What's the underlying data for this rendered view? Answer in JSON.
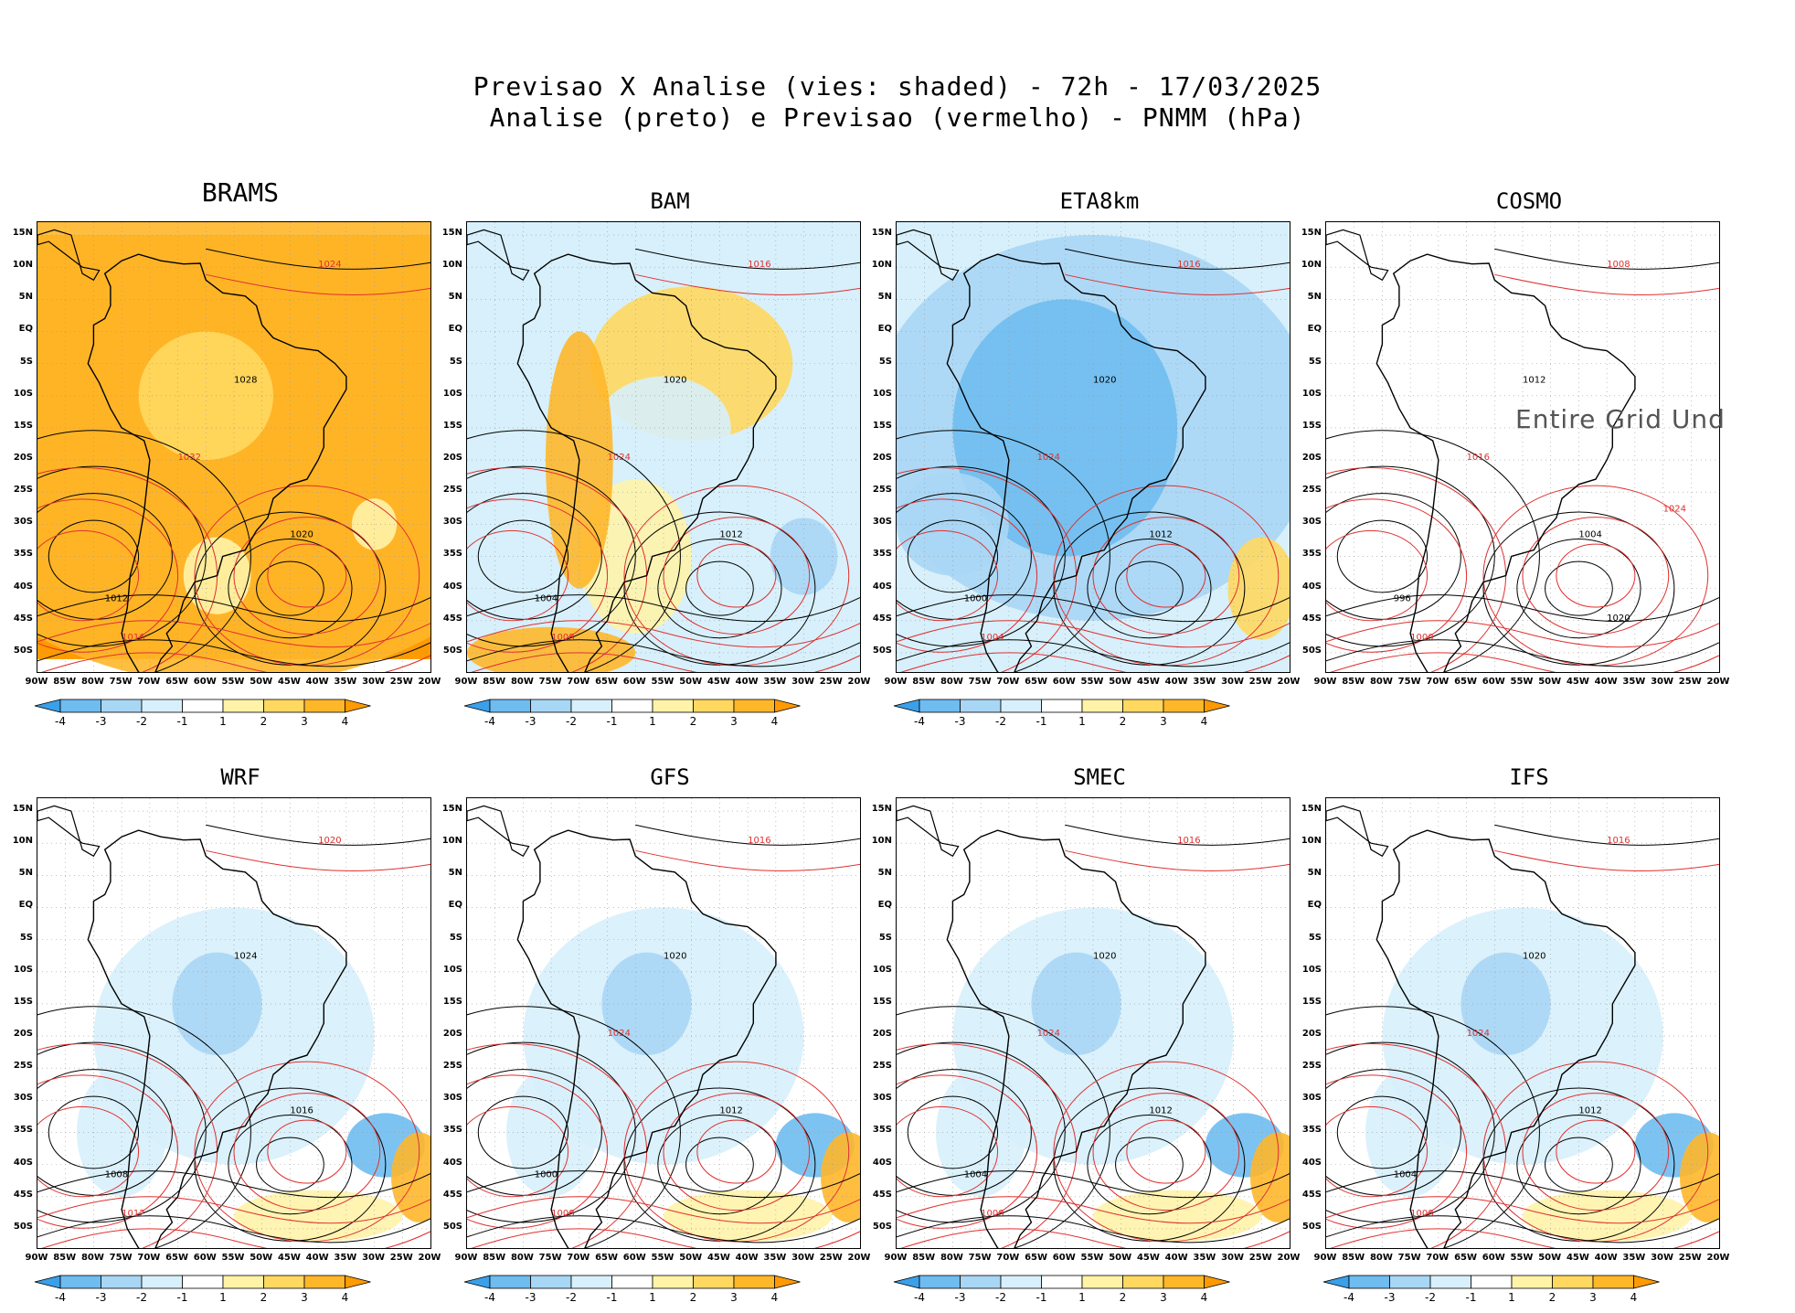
{
  "title": {
    "line1": "Previsao X Analise (vies: shaded) - 72h - 17/03/2025",
    "line2": "Analise (preto) e Previsao (vermelho) - PNMM (hPa)"
  },
  "lat_labels": [
    "15N",
    "10N",
    "5N",
    "EQ",
    "5S",
    "10S",
    "15S",
    "20S",
    "25S",
    "30S",
    "35S",
    "40S",
    "45S",
    "50S"
  ],
  "lon_labels": [
    "90W",
    "85W",
    "80W",
    "75W",
    "70W",
    "65W",
    "60W",
    "55W",
    "50W",
    "45W",
    "40W",
    "35W",
    "30W",
    "25W",
    "20W"
  ],
  "colorbar": {
    "ticks": [
      "-4",
      "-3",
      "-2",
      "-1",
      "1",
      "2",
      "3",
      "4"
    ],
    "colors": [
      "#3aa0ea",
      "#6fbcf0",
      "#a8d6f5",
      "#d7f0fb",
      "#ffffff",
      "#fff3a8",
      "#ffd860",
      "#ffb72a",
      "#ff9a00"
    ]
  },
  "colors": {
    "analysis_contour": "#000000",
    "forecast_contour": "#e03030",
    "warm_bias": "#ff9a00",
    "cold_bias": "#5cb2f0"
  },
  "panels": [
    {
      "name": "BRAMS",
      "bias": "warm",
      "has_colorbar": true,
      "labels": [
        "1012",
        "1016",
        "1020",
        "1024",
        "1028",
        "1032"
      ]
    },
    {
      "name": "BAM",
      "bias": "mixed",
      "has_colorbar": true,
      "labels": [
        "1004",
        "1008",
        "1012",
        "1016",
        "1020",
        "1024"
      ]
    },
    {
      "name": "ETA8km",
      "bias": "cold",
      "has_colorbar": true,
      "labels": [
        "1000",
        "1004",
        "1012",
        "1016",
        "1020",
        "1024"
      ]
    },
    {
      "name": "COSMO",
      "bias": "none",
      "has_colorbar": false,
      "no_data_text": "Entire Grid Und",
      "labels": [
        "996",
        "1000",
        "1004",
        "1008",
        "1012",
        "1016",
        "1020",
        "1024"
      ]
    },
    {
      "name": "WRF",
      "bias": "mixed-cold",
      "has_colorbar": true,
      "labels": [
        "1008",
        "1012",
        "1016",
        "1020",
        "1024"
      ]
    },
    {
      "name": "GFS",
      "bias": "mixed-cold",
      "has_colorbar": true,
      "labels": [
        "1000",
        "1008",
        "1012",
        "1016",
        "1020",
        "1024"
      ]
    },
    {
      "name": "SMEC",
      "bias": "mixed-cold",
      "has_colorbar": true,
      "labels": [
        "1004",
        "1008",
        "1012",
        "1016",
        "1020",
        "1024"
      ]
    },
    {
      "name": "IFS",
      "bias": "mixed-cold",
      "has_colorbar": true,
      "labels": [
        "1004",
        "1008",
        "1012",
        "1016",
        "1020",
        "1024"
      ]
    }
  ]
}
